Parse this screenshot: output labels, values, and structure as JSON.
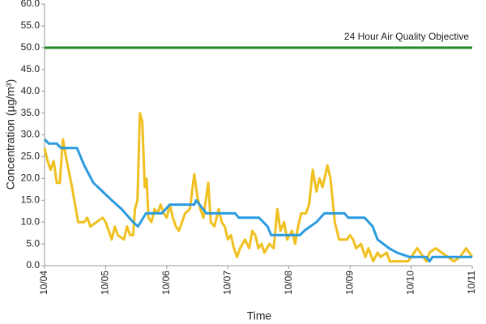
{
  "chart_data": {
    "type": "line",
    "xlabel": "Time",
    "ylabel": "Concentration (µg/m³)",
    "xlim": [
      0,
      7
    ],
    "xticks": [
      {
        "value": 0,
        "label": "10/04"
      },
      {
        "value": 1,
        "label": "10/05"
      },
      {
        "value": 2,
        "label": "10/06"
      },
      {
        "value": 3,
        "label": "10/07"
      },
      {
        "value": 4,
        "label": "10/08"
      },
      {
        "value": 5,
        "label": "10/09"
      },
      {
        "value": 6,
        "label": "10/10"
      },
      {
        "value": 7,
        "label": "10/11"
      }
    ],
    "ylim": [
      0,
      60
    ],
    "yticks": [
      {
        "value": 0,
        "label": "0.0"
      },
      {
        "value": 5,
        "label": "5.0"
      },
      {
        "value": 10,
        "label": "10.0"
      },
      {
        "value": 15,
        "label": "15.0"
      },
      {
        "value": 20,
        "label": "20.0"
      },
      {
        "value": 25,
        "label": "25.0"
      },
      {
        "value": 30,
        "label": "30.0"
      },
      {
        "value": 35,
        "label": "35.0"
      },
      {
        "value": 40,
        "label": "40.0"
      },
      {
        "value": 45,
        "label": "45.0"
      },
      {
        "value": 50,
        "label": "50.0"
      },
      {
        "value": 55,
        "label": "55.0"
      },
      {
        "value": 60,
        "label": "60.0"
      }
    ],
    "reference_line": {
      "value": 50,
      "label": "24 Hour Air Quality Objective",
      "color": "#2a8a2a"
    },
    "series": [
      {
        "color": "#f0c020",
        "x": [
          0,
          0.05,
          0.1,
          0.15,
          0.2,
          0.25,
          0.3,
          0.35,
          0.45,
          0.5,
          0.55,
          0.65,
          0.7,
          0.75,
          0.85,
          0.95,
          1.0,
          1.05,
          1.1,
          1.15,
          1.2,
          1.3,
          1.35,
          1.4,
          1.45,
          1.48,
          1.52,
          1.56,
          1.6,
          1.64,
          1.67,
          1.7,
          1.75,
          1.8,
          1.85,
          1.9,
          1.95,
          2.0,
          2.05,
          2.1,
          2.15,
          2.2,
          2.25,
          2.3,
          2.38,
          2.45,
          2.5,
          2.55,
          2.6,
          2.68,
          2.72,
          2.78,
          2.85,
          2.9,
          2.95,
          3.0,
          3.05,
          3.1,
          3.15,
          3.2,
          3.28,
          3.35,
          3.4,
          3.45,
          3.5,
          3.55,
          3.6,
          3.68,
          3.75,
          3.81,
          3.86,
          3.92,
          3.97,
          4.05,
          4.1,
          4.15,
          4.2,
          4.28,
          4.33,
          4.39,
          4.45,
          4.5,
          4.55,
          4.63,
          4.68,
          4.75,
          4.82,
          4.95,
          5.0,
          5.05,
          5.1,
          5.18,
          5.25,
          5.3,
          5.38,
          5.45,
          5.5,
          5.6,
          5.65,
          5.8,
          5.95,
          6.0,
          6.1,
          6.2,
          6.25,
          6.3,
          6.4,
          6.5,
          6.6,
          6.7,
          6.8,
          6.9,
          7.0
        ],
        "values": [
          27,
          24,
          22,
          24,
          19,
          19,
          29,
          25,
          18,
          14,
          10,
          10,
          11,
          9,
          10,
          11,
          10,
          8,
          6,
          9,
          7,
          6,
          9,
          7,
          7,
          13,
          15,
          35,
          33,
          18,
          20,
          11,
          10,
          13,
          12,
          14,
          12,
          11,
          14,
          11,
          9,
          8,
          10,
          12,
          13,
          21,
          16,
          13,
          11,
          19,
          10,
          9,
          13,
          10,
          9,
          6,
          7,
          4,
          2,
          4,
          6,
          4,
          8,
          7,
          4,
          5,
          3,
          5,
          4,
          13,
          8,
          10,
          6,
          8,
          5,
          9,
          12,
          12,
          14,
          22,
          17,
          20,
          18,
          23,
          20,
          10,
          6,
          6,
          7,
          6,
          4,
          5,
          2,
          4,
          1,
          3,
          2,
          3,
          1,
          1,
          1,
          2,
          4,
          2,
          1,
          3,
          4,
          3,
          2,
          1,
          2,
          4,
          2
        ]
      },
      {
        "color": "#2b9be0",
        "x": [
          0,
          0.07,
          0.2,
          0.27,
          0.53,
          0.65,
          0.8,
          0.95,
          1.1,
          1.26,
          1.45,
          1.53,
          1.66,
          1.92,
          2.05,
          2.45,
          2.48,
          2.65,
          3.12,
          3.18,
          3.51,
          3.65,
          3.71,
          4.18,
          4.25,
          4.45,
          4.58,
          4.91,
          4.97,
          5.24,
          5.37,
          5.45,
          5.64,
          5.77,
          5.97,
          6.25,
          6.3,
          6.35,
          7
        ],
        "values": [
          29,
          28,
          28,
          27,
          27,
          23,
          19,
          17,
          15,
          13,
          10,
          9,
          12,
          12,
          14,
          14,
          15,
          12,
          12,
          11,
          11,
          9,
          7,
          7,
          8,
          10,
          12,
          12,
          11,
          11,
          9,
          6,
          4,
          3,
          2,
          2,
          1,
          2,
          2
        ]
      }
    ]
  }
}
